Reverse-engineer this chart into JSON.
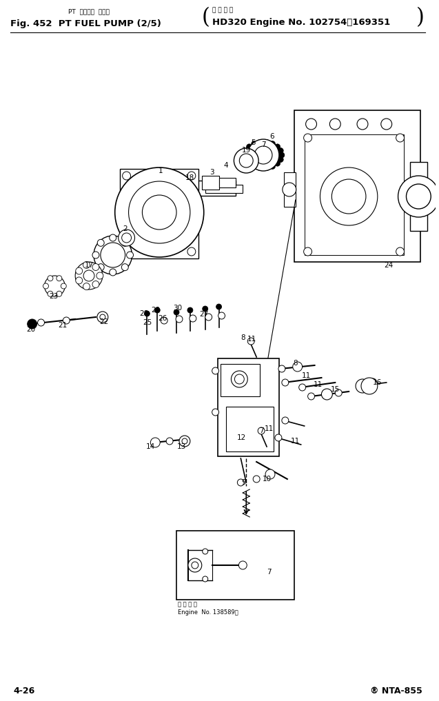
{
  "title_line1_left": "PT  フェエル  ポンプ",
  "title_line2_left": "Fig. 452  PT FUEL PUMP (2/5)",
  "title_line1_right_top": "適 用 号 機",
  "title_line1_right": "HD320 Engine No. 102754～169351",
  "page_left": "4-26",
  "page_right": "® NTA-855",
  "bg_color": "#ffffff",
  "fig_width": 6.37,
  "fig_height": 10.17,
  "inset_label_line1": "適 用 号 機",
  "inset_label_line2": "Engine  No. 138589～"
}
